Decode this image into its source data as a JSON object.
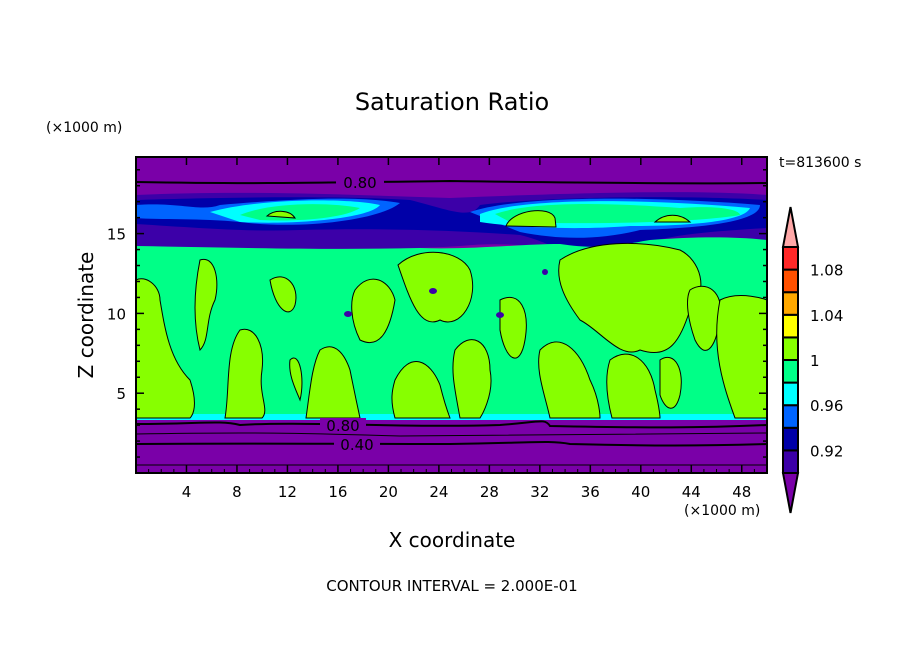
{
  "chart_data": {
    "type": "heatmap",
    "subtype": "filled-contour",
    "title": "Saturation Ratio",
    "xlabel": "X coordinate",
    "ylabel": "Z coordinate",
    "x_unit": "(×1000 m)",
    "y_unit": "(×1000 m)",
    "time_label": "t=813600 s",
    "footer": "CONTOUR INTERVAL = 2.000E-01",
    "xlim": [
      0,
      50
    ],
    "ylim": [
      0,
      19.8
    ],
    "x_ticks": [
      "4",
      "8",
      "12",
      "16",
      "20",
      "24",
      "28",
      "32",
      "36",
      "40",
      "44",
      "48"
    ],
    "y_ticks": [
      "5",
      "10",
      "15"
    ],
    "contour_labels": [
      "0.80",
      "0.80",
      "0.40"
    ],
    "colorbar": {
      "levels": [
        0.9,
        0.92,
        0.94,
        0.96,
        0.98,
        1.0,
        1.02,
        1.04,
        1.06,
        1.08,
        1.1
      ],
      "tick_labels": [
        "1.08",
        "1.04",
        "1",
        "0.96",
        "0.92"
      ],
      "colors": [
        "#7a00a8",
        "#3c00a8",
        "#0000a8",
        "#0064ff",
        "#00ffff",
        "#00ff87",
        "#87ff00",
        "#ffff00",
        "#ffa800",
        "#ff5000",
        "#ff2828",
        "#ffa8a8"
      ],
      "extend": "both"
    }
  }
}
